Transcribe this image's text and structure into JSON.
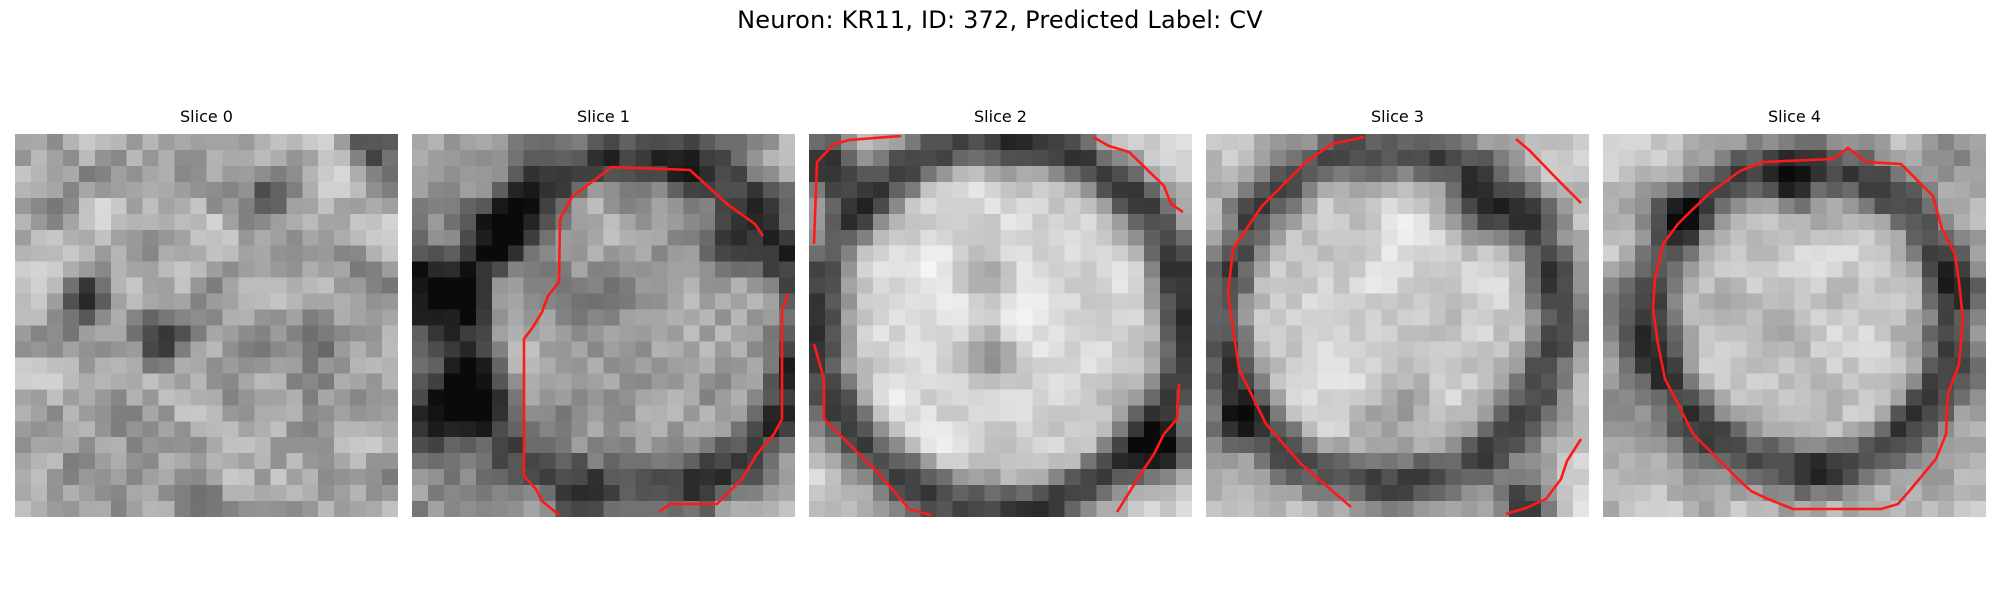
{
  "figure": {
    "title": "Neuron: KR11, ID: 372, Predicted Label: CV"
  },
  "colors": {
    "contour": "#ff1a1a",
    "background": "#ffffff"
  },
  "colormap": "grayscale",
  "panels": [
    {
      "title": "Slice 0",
      "has_contour": false
    },
    {
      "title": "Slice 1",
      "has_contour": true
    },
    {
      "title": "Slice 2",
      "has_contour": true
    },
    {
      "title": "Slice 3",
      "has_contour": true
    },
    {
      "title": "Slice 4",
      "has_contour": true
    }
  ]
}
